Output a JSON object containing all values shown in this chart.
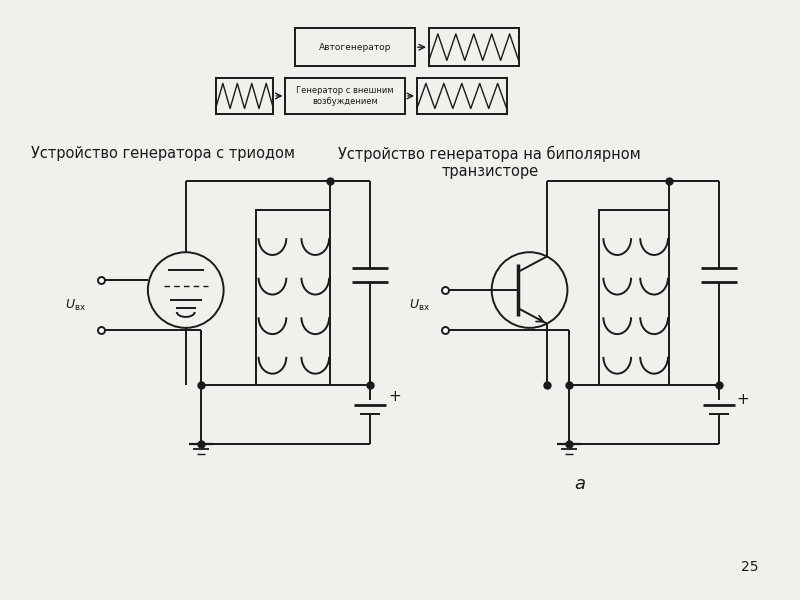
{
  "bg_color": "#f2f0ec",
  "title_left": "Устройство генератора с триодом",
  "title_right": "Устройство генератора на биполярном\nтранзисторе",
  "label_a": "a",
  "label_plus": "+",
  "page_num": "25",
  "box1_label": "Автогенератор",
  "box2_label": "Генератор с внешним\nвозбуждением",
  "line_color": "#1a1a1a",
  "font_size_title": 10.5,
  "font_size_small": 6.5
}
